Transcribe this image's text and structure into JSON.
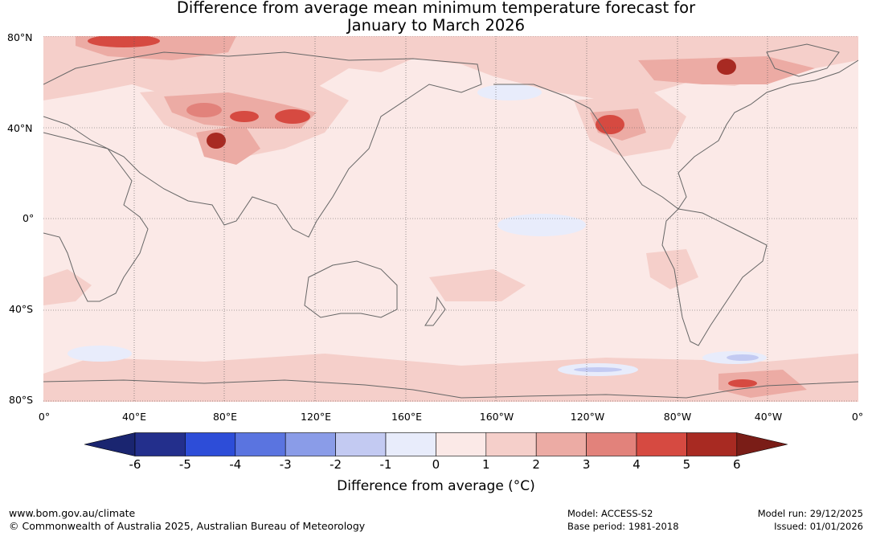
{
  "title": {
    "line1": "Difference from average mean minimum temperature forecast for",
    "line2": "January to March 2026"
  },
  "map": {
    "lat_labels": [
      "80°N",
      "40°N",
      "0°",
      "40°S",
      "80°S"
    ],
    "lon_labels": [
      "0°",
      "40°E",
      "80°E",
      "120°E",
      "160°E",
      "160°W",
      "120°W",
      "80°W",
      "40°W",
      "0°"
    ]
  },
  "colorbar": {
    "ticks": [
      "-6",
      "-5",
      "-4",
      "-3",
      "-2",
      "-1",
      "0",
      "1",
      "2",
      "3",
      "4",
      "5",
      "6"
    ],
    "colors": [
      "#232f8c",
      "#2d4dd8",
      "#5a74e0",
      "#8a9ce8",
      "#c3caf2",
      "#e8ecfb",
      "#fbe9e7",
      "#f5cfca",
      "#ecabA4",
      "#e2827b",
      "#d64a41",
      "#a82a22"
    ],
    "low_extend_color": "#1a2570",
    "high_extend_color": "#7a1d17",
    "label": "Difference from average (°C)"
  },
  "footer": {
    "url": "www.bom.gov.au/climate",
    "copyright": "© Commonwealth of Australia 2025, Australian Bureau of Meteorology",
    "model": "Model: ACCESS-S2",
    "base_period": "Base period: 1981-2018",
    "model_run": "Model run: 29/12/2025",
    "issued": "Issued: 01/01/2026"
  }
}
